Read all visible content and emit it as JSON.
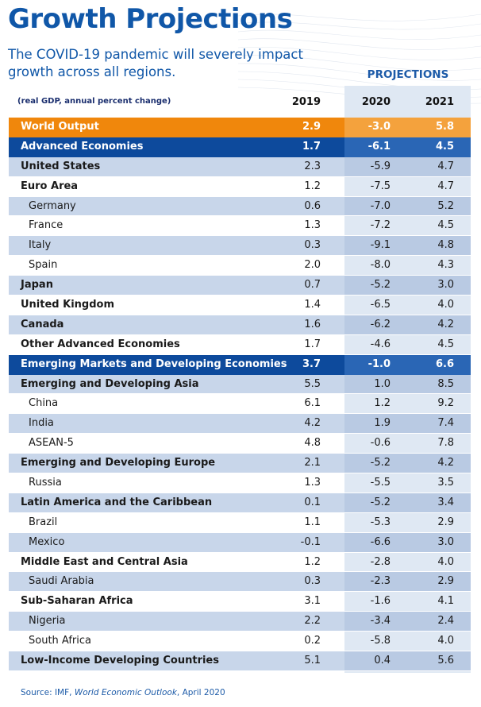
{
  "title": "Growth Projections",
  "subtitle": "The COVID-19 pandemic will severely impact growth across all regions.",
  "projections_label": "PROJECTIONS",
  "units": "(real GDP, annual percent change)",
  "years": [
    "2019",
    "2020",
    "2021"
  ],
  "source": {
    "prefix": "Source: IMF, ",
    "publication": "World Economic Outlook",
    "suffix": ", April 2020"
  },
  "colors": {
    "title_blue": "#1057a8",
    "world_orange": "#f0870c",
    "header_blue": "#0d4a9c",
    "row_shade": "#c8d6ea"
  },
  "chart_data": {
    "type": "table",
    "title": "Growth Projections",
    "columns": [
      "2019",
      "2020",
      "2021"
    ],
    "rows": [
      {
        "name": "World Output",
        "values": [
          "2.9",
          "-3.0",
          "5.8"
        ],
        "style": "world"
      },
      {
        "name": "Advanced Economies",
        "values": [
          "1.7",
          "-6.1",
          "4.5"
        ],
        "style": "group"
      },
      {
        "name": "United States",
        "values": [
          "2.3",
          "-5.9",
          "4.7"
        ],
        "style": "bold"
      },
      {
        "name": "Euro Area",
        "values": [
          "1.2",
          "-7.5",
          "4.7"
        ],
        "style": "bold"
      },
      {
        "name": "Germany",
        "values": [
          "0.6",
          "-7.0",
          "5.2"
        ],
        "style": "indent"
      },
      {
        "name": "France",
        "values": [
          "1.3",
          "-7.2",
          "4.5"
        ],
        "style": "indent"
      },
      {
        "name": "Italy",
        "values": [
          "0.3",
          "-9.1",
          "4.8"
        ],
        "style": "indent"
      },
      {
        "name": "Spain",
        "values": [
          "2.0",
          "-8.0",
          "4.3"
        ],
        "style": "indent"
      },
      {
        "name": "Japan",
        "values": [
          "0.7",
          "-5.2",
          "3.0"
        ],
        "style": "bold"
      },
      {
        "name": "United Kingdom",
        "values": [
          "1.4",
          "-6.5",
          "4.0"
        ],
        "style": "bold"
      },
      {
        "name": "Canada",
        "values": [
          "1.6",
          "-6.2",
          "4.2"
        ],
        "style": "bold"
      },
      {
        "name": "Other Advanced Economies",
        "values": [
          "1.7",
          "-4.6",
          "4.5"
        ],
        "style": "bold"
      },
      {
        "name": "Emerging Markets and Developing Economies",
        "values": [
          "3.7",
          "-1.0",
          "6.6"
        ],
        "style": "group"
      },
      {
        "name": "Emerging and Developing Asia",
        "values": [
          "5.5",
          "1.0",
          "8.5"
        ],
        "style": "bold"
      },
      {
        "name": "China",
        "values": [
          "6.1",
          "1.2",
          "9.2"
        ],
        "style": "indent"
      },
      {
        "name": "India",
        "values": [
          "4.2",
          "1.9",
          "7.4"
        ],
        "style": "indent"
      },
      {
        "name": "ASEAN-5",
        "values": [
          "4.8",
          "-0.6",
          "7.8"
        ],
        "style": "indent"
      },
      {
        "name": "Emerging and Developing Europe",
        "values": [
          "2.1",
          "-5.2",
          "4.2"
        ],
        "style": "bold"
      },
      {
        "name": "Russia",
        "values": [
          "1.3",
          "-5.5",
          "3.5"
        ],
        "style": "indent"
      },
      {
        "name": "Latin America and the Caribbean",
        "values": [
          "0.1",
          "-5.2",
          "3.4"
        ],
        "style": "bold"
      },
      {
        "name": "Brazil",
        "values": [
          "1.1",
          "-5.3",
          "2.9"
        ],
        "style": "indent"
      },
      {
        "name": "Mexico",
        "values": [
          "-0.1",
          "-6.6",
          "3.0"
        ],
        "style": "indent"
      },
      {
        "name": "Middle East and Central Asia",
        "values": [
          "1.2",
          "-2.8",
          "4.0"
        ],
        "style": "bold"
      },
      {
        "name": "Saudi Arabia",
        "values": [
          "0.3",
          "-2.3",
          "2.9"
        ],
        "style": "indent"
      },
      {
        "name": "Sub-Saharan Africa",
        "values": [
          "3.1",
          "-1.6",
          "4.1"
        ],
        "style": "bold"
      },
      {
        "name": "Nigeria",
        "values": [
          "2.2",
          "-3.4",
          "2.4"
        ],
        "style": "indent"
      },
      {
        "name": "South Africa",
        "values": [
          "0.2",
          "-5.8",
          "4.0"
        ],
        "style": "indent"
      },
      {
        "name": "Low-Income Developing Countries",
        "values": [
          "5.1",
          "0.4",
          "5.6"
        ],
        "style": "bold"
      }
    ]
  }
}
